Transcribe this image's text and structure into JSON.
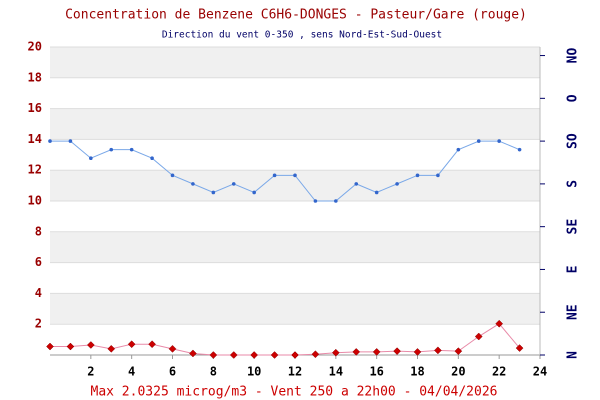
{
  "chart_data": {
    "type": "line",
    "title": "Concentration de Benzene C6H6-DONGES - Pasteur/Gare (rouge)",
    "subtitle": "Direction du vent 0-350 , sens Nord-Est-Sud-Ouest",
    "footer": "Max 2.0325 microg/m3 - Vent 250  a 22h00 - 04/04/2026",
    "x": [
      0,
      1,
      2,
      3,
      4,
      5,
      6,
      7,
      8,
      9,
      10,
      11,
      12,
      13,
      14,
      15,
      16,
      17,
      18,
      19,
      20,
      21,
      22,
      23
    ],
    "xlim": [
      0,
      24
    ],
    "xticks": [
      2,
      4,
      6,
      8,
      10,
      12,
      14,
      16,
      18,
      20,
      22,
      24
    ],
    "ylim": [
      0,
      20
    ],
    "yticks": [
      2,
      4,
      6,
      8,
      10,
      12,
      14,
      16,
      18,
      20
    ],
    "y2lim": [
      0,
      360
    ],
    "y2ticks": [
      {
        "value": 0,
        "label": "N"
      },
      {
        "value": 50,
        "label": "NE"
      },
      {
        "value": 100,
        "label": "E"
      },
      {
        "value": 150,
        "label": "SE"
      },
      {
        "value": 200,
        "label": "S"
      },
      {
        "value": 250,
        "label": "SO"
      },
      {
        "value": 300,
        "label": "O"
      },
      {
        "value": 350,
        "label": "NO"
      }
    ],
    "grid": true,
    "series": [
      {
        "name": "Benzene",
        "color": "#cc0000",
        "values": [
          0.55,
          0.55,
          0.65,
          0.4,
          0.7,
          0.7,
          0.4,
          0.1,
          0.0,
          0.0,
          0.0,
          0.0,
          0.0,
          0.05,
          0.15,
          0.2,
          0.2,
          0.25,
          0.2,
          0.3,
          0.25,
          1.2,
          2.0325,
          0.45
        ]
      },
      {
        "name": "Vent",
        "color": "#3366cc",
        "axis": "y2",
        "values": [
          250,
          250,
          230,
          240,
          240,
          230,
          210,
          200,
          190,
          200,
          190,
          210,
          210,
          180,
          180,
          200,
          190,
          200,
          210,
          210,
          240,
          250,
          250,
          240
        ]
      }
    ]
  }
}
